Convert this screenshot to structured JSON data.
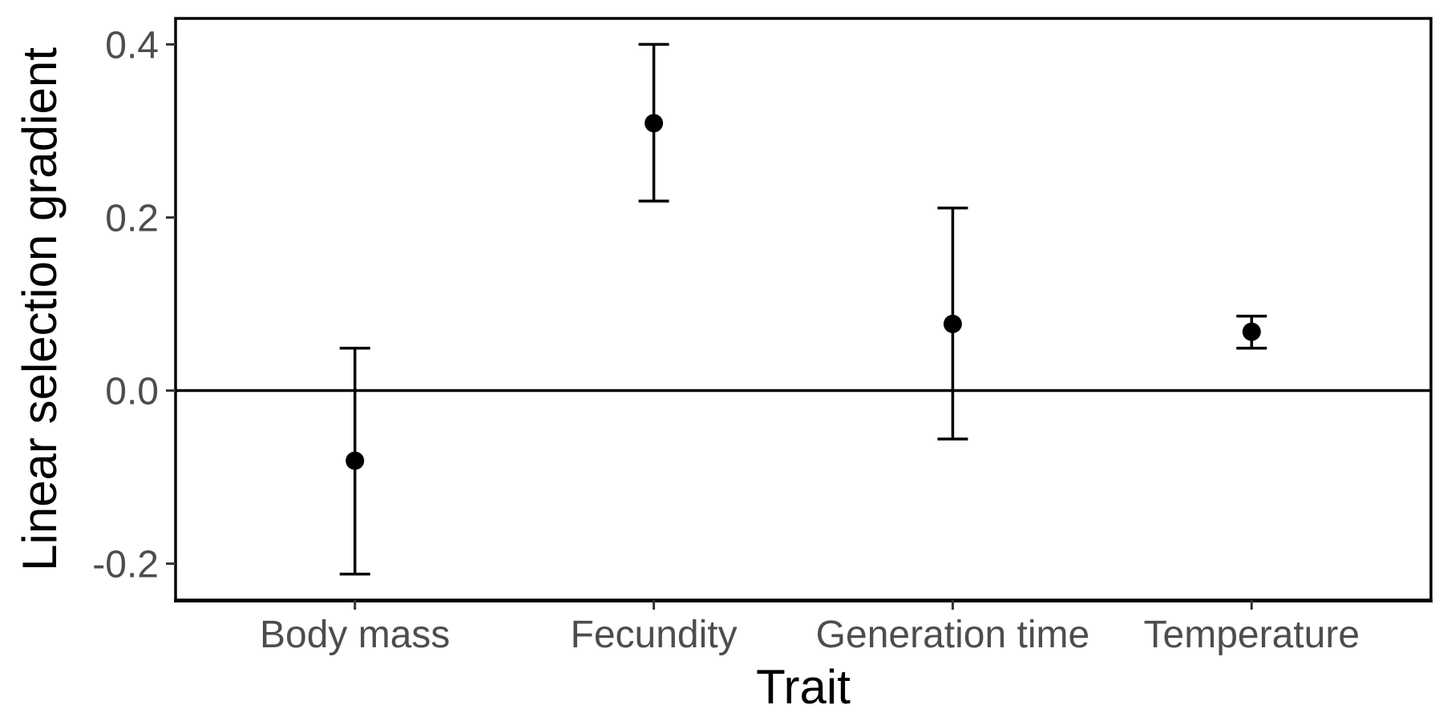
{
  "chart_data": {
    "type": "scatter",
    "subtype": "point-with-error-bars",
    "title": "",
    "xlabel": "Trait",
    "ylabel": "Linear selection gradient",
    "categories": [
      "Body mass",
      "Fecundity",
      "Generation time",
      "Temperature"
    ],
    "series": [
      {
        "values": [
          -0.081,
          0.309,
          0.077,
          0.068
        ],
        "lower": [
          -0.212,
          0.219,
          -0.056,
          0.049
        ],
        "upper": [
          0.049,
          0.4,
          0.211,
          0.086
        ]
      }
    ],
    "ylim": [
      -0.242,
      0.43
    ],
    "yticks": [
      -0.2,
      0.0,
      0.2,
      0.4
    ],
    "ytick_labels": [
      "-0.2",
      "0.0",
      "0.2",
      "0.4"
    ],
    "reference_line": 0,
    "grid": false,
    "legend": "none",
    "colors": {
      "marks": "#000000",
      "tick_text": "#4d4d4d",
      "background": "#ffffff"
    }
  }
}
